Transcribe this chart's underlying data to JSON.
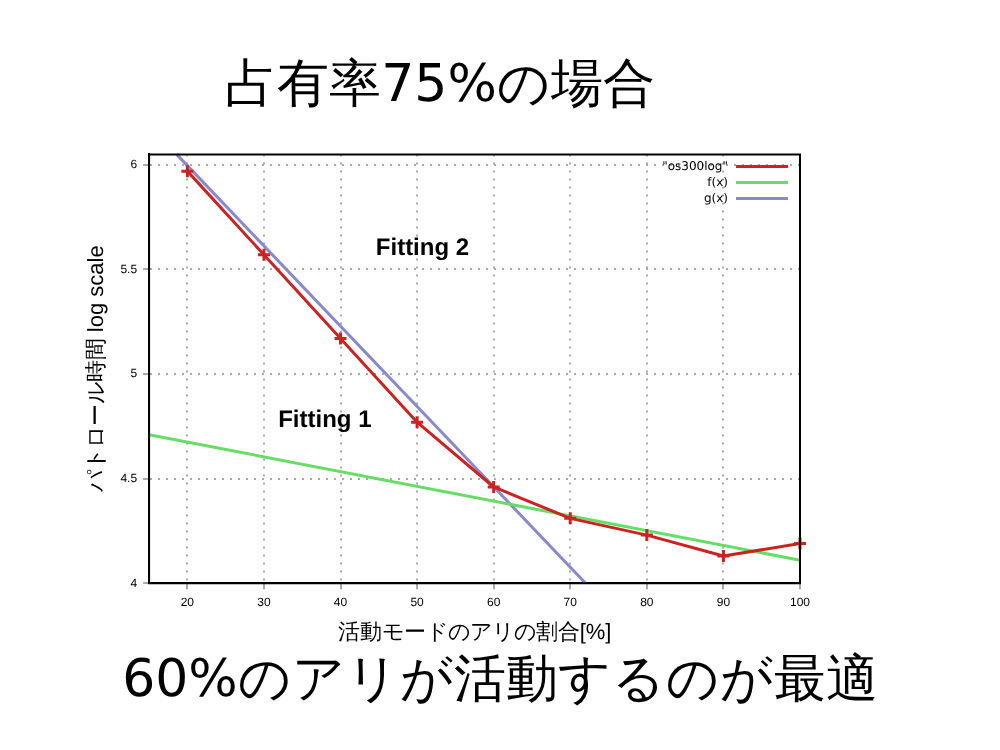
{
  "chart_data": {
    "type": "line",
    "title": "占有率75%の場合",
    "xlabel": "活動モードのアリの割合[%]",
    "ylabel": "パトロール時間 log scale",
    "xlim": [
      15,
      100
    ],
    "xticks": [
      20,
      30,
      40,
      50,
      60,
      70,
      80,
      90,
      100
    ],
    "ylim": [
      4,
      6.05
    ],
    "yticks": [
      4,
      4.5,
      5,
      5.5,
      6
    ],
    "grid": true,
    "legend": "top right",
    "series": [
      {
        "name": "\"os300log\"",
        "color": "#cc2222",
        "marker": "cross",
        "x": [
          20,
          30,
          40,
          50,
          60,
          70,
          80,
          90,
          100
        ],
        "values": [
          5.97,
          5.57,
          5.17,
          4.77,
          4.46,
          4.31,
          4.23,
          4.13,
          4.19
        ]
      },
      {
        "name": "f(x)",
        "color": "#66dd66",
        "marker": "none",
        "x": [
          15,
          100
        ],
        "values": [
          4.71,
          4.11
        ]
      },
      {
        "name": "g(x)",
        "color": "#8888cc",
        "marker": "none",
        "x": [
          18.6,
          72
        ],
        "values": [
          6.05,
          4
        ]
      }
    ],
    "annotations": [
      "Fitting 2",
      "Fitting 1",
      "60%のアリが活動するのが最適"
    ]
  }
}
